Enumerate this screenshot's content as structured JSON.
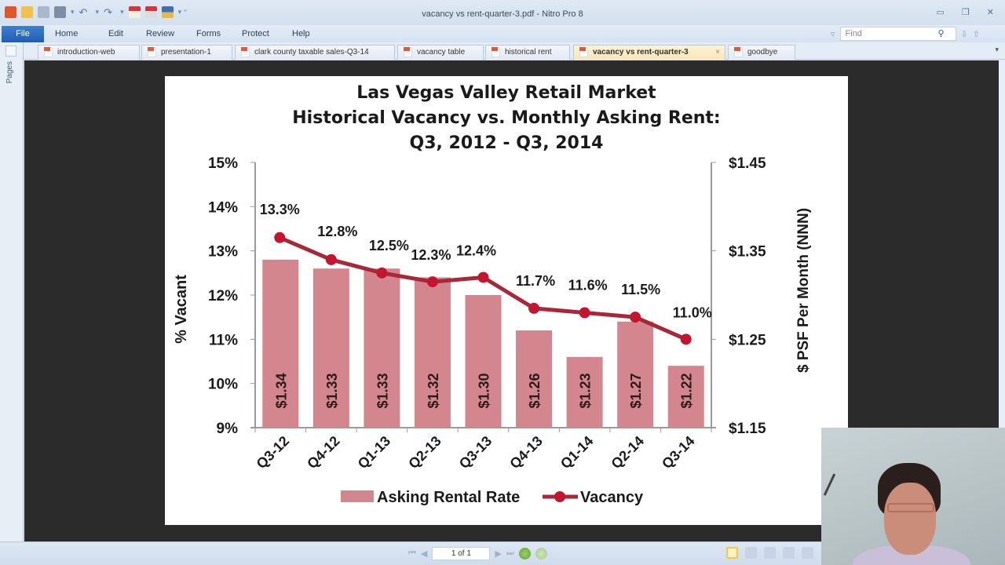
{
  "window": {
    "title": "vacancy vs rent-quarter-3.pdf - Nitro Pro 8",
    "controls": [
      "minimize",
      "restore",
      "close"
    ]
  },
  "quick_access": [
    "nitro-logo",
    "open-icon",
    "save-icon",
    "print-icon",
    "undo-icon",
    "redo-icon",
    "create-pdf-icon",
    "combine-icon",
    "save-as-icon"
  ],
  "ribbon": {
    "file_label": "File",
    "menu": [
      "Home",
      "Edit",
      "Review",
      "Forms",
      "Protect",
      "Help"
    ],
    "find_placeholder": "Find"
  },
  "sidebar": {
    "pages_label": "Pages"
  },
  "tabs": [
    {
      "label": "introduction-web",
      "active": false
    },
    {
      "label": "presentation-1",
      "active": false
    },
    {
      "label": "clark county taxable sales-Q3-14",
      "active": false
    },
    {
      "label": "vacancy table",
      "active": false
    },
    {
      "label": "historical rent",
      "active": false
    },
    {
      "label": "vacancy vs rent-quarter-3",
      "active": true
    },
    {
      "label": "goodbye",
      "active": false
    }
  ],
  "statusbar": {
    "page_indicator": "1 of 1"
  },
  "chart_data": {
    "type": "bar+line",
    "title": "Las Vegas Valley Retail Market",
    "subtitle_1": "Historical Vacancy vs. Monthly Asking Rent:",
    "subtitle_2": "Q3, 2012 - Q3, 2014",
    "categories": [
      "Q3-12",
      "Q4-12",
      "Q1-13",
      "Q2-13",
      "Q3-13",
      "Q4-13",
      "Q1-14",
      "Q2-14",
      "Q3-14"
    ],
    "series": [
      {
        "name": "Asking Rental Rate",
        "type": "bar",
        "axis": "right",
        "color": "#d4868e",
        "values": [
          1.34,
          1.33,
          1.33,
          1.32,
          1.3,
          1.26,
          1.23,
          1.27,
          1.22
        ],
        "labels": [
          "$1.34",
          "$1.33",
          "$1.33",
          "$1.32",
          "$1.30",
          "$1.26",
          "$1.23",
          "$1.27",
          "$1.22"
        ]
      },
      {
        "name": "Vacancy",
        "type": "line",
        "axis": "left",
        "color": "#a8283a",
        "values": [
          13.3,
          12.8,
          12.5,
          12.3,
          12.4,
          11.7,
          11.6,
          11.5,
          11.0
        ],
        "labels": [
          "13.3%",
          "12.8%",
          "12.5%",
          "12.3%",
          "12.4%",
          "11.7%",
          "11.6%",
          "11.5%",
          "11.0%"
        ]
      }
    ],
    "ylabel": "% Vacant",
    "ylabel_right": "$ PSF Per Month (NNN)",
    "ylim": [
      9,
      15
    ],
    "ylim_right": [
      1.15,
      1.45
    ],
    "yticks": [
      "15%",
      "14%",
      "13%",
      "12%",
      "11%",
      "10%",
      "9%"
    ],
    "yticks_right": [
      "$1.45",
      "$1.35",
      "$1.25",
      "$1.15"
    ],
    "legend": [
      "Asking Rental Rate",
      "Vacancy"
    ],
    "legend_position": "bottom",
    "grid": false
  }
}
